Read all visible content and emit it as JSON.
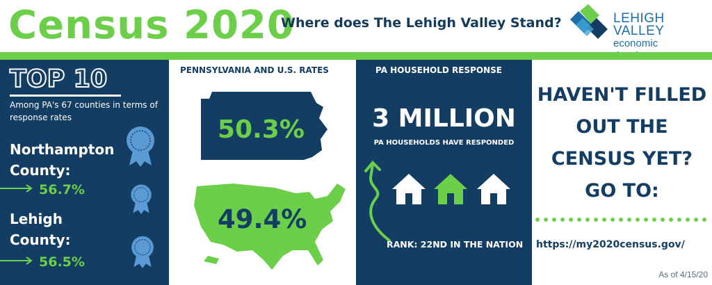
{
  "header": {
    "title": "Census 2020",
    "subtitle": "Where does The Lehigh Valley Stand?",
    "logo": {
      "name": "LEHIGH VALLEY",
      "tagline": "economic development",
      "icon": "lvedc-logo-mark"
    }
  },
  "colors": {
    "navy": "#143d63",
    "green": "#6ccf4a",
    "ribbon": "#5b9bd5",
    "logo_blue": "#1b6ea8"
  },
  "top10": {
    "heading": "TOP 10",
    "description": "Among PA's 67 counties in terms of response rates",
    "counties": [
      {
        "name": "Northampton County:",
        "rate": "56.7%",
        "icon": "award-ribbon-icon"
      },
      {
        "name": "Lehigh County:",
        "rate": "56.5%",
        "icon": "award-ribbon-icon"
      }
    ]
  },
  "rates": {
    "heading": "PENNSYLVANIA AND U.S. RATES",
    "pa_rate": "50.3%",
    "us_rate": "49.4%"
  },
  "household": {
    "heading": "PA HOUSEHOLD RESPONSE",
    "big_number": "3 MILLION",
    "caption": "PA HOUSEHOLDS HAVE RESPONDED",
    "rank": "RANK: 22ND IN THE NATION",
    "icons": [
      "house-icon",
      "house-icon",
      "house-icon"
    ]
  },
  "cta": {
    "lines": [
      "HAVEN'T FILLED",
      "OUT THE",
      "CENSUS YET?",
      "GO TO:"
    ],
    "url": "https://my2020census.gov/",
    "as_of": "As of 4/15/20"
  }
}
